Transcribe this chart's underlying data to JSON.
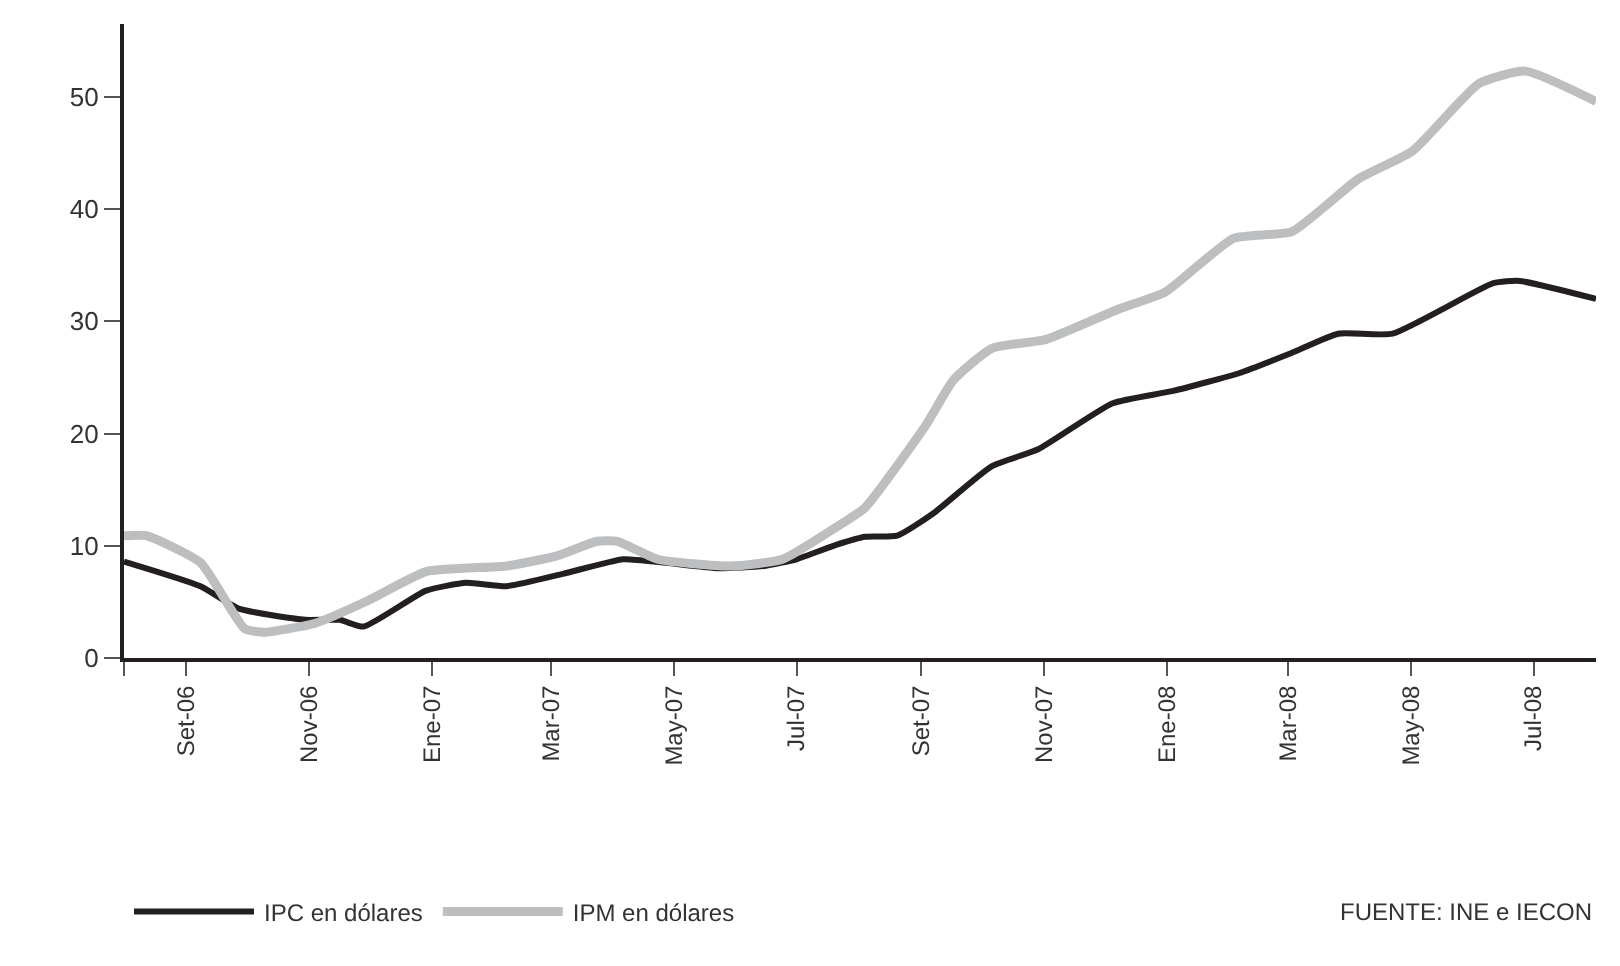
{
  "chart_data": {
    "type": "line",
    "annotations": [
      "FUENTE: INE e IECON"
    ],
    "xlim": [
      "2006-08-01",
      "2008-08-01"
    ],
    "xticks": [
      {
        "value": "2006-08-01",
        "label": null
      },
      {
        "value": "2006-09-01",
        "label": "Set-06"
      },
      {
        "value": "2006-11-01",
        "label": "Nov-06"
      },
      {
        "value": "2007-01-01",
        "label": "Ene-07"
      },
      {
        "value": "2007-03-01",
        "label": "Mar-07"
      },
      {
        "value": "2007-05-01",
        "label": "May-07"
      },
      {
        "value": "2007-07-01",
        "label": "Jul-07"
      },
      {
        "value": "2007-09-01",
        "label": "Set-07"
      },
      {
        "value": "2007-11-01",
        "label": "Nov-07"
      },
      {
        "value": "2008-01-01",
        "label": "Ene-08"
      },
      {
        "value": "2008-03-01",
        "label": "Mar-08"
      },
      {
        "value": "2008-05-01",
        "label": "May-08"
      },
      {
        "value": "2008-07-01",
        "label": "Jul-08"
      }
    ],
    "ylim": [
      0,
      56.5
    ],
    "yticks": [
      0,
      10,
      20,
      30,
      40,
      50
    ],
    "legend": "bottom",
    "marker": "none",
    "line_style": "solid",
    "series": [
      {
        "name": "IPC en dólares",
        "color": "#231f20",
        "x": [
          "2006-08-01",
          "2006-09-08",
          "2006-09-27",
          "2006-10-30",
          "2006-11-16",
          "2006-11-28",
          "2006-12-29",
          "2007-01-18",
          "2007-02-07",
          "2007-03-07",
          "2007-04-06",
          "2007-04-26",
          "2007-05-23",
          "2007-06-15",
          "2007-07-01",
          "2007-07-21",
          "2007-08-04",
          "2007-08-20",
          "2007-09-07",
          "2007-10-06",
          "2007-10-29",
          "2007-12-05",
          "2008-01-04",
          "2008-02-06",
          "2008-03-03",
          "2008-03-26",
          "2008-04-22",
          "2008-06-11",
          "2008-06-24",
          "2008-08-01"
        ],
        "values": [
          8.6,
          6.4,
          4.4,
          3.4,
          3.4,
          2.8,
          6.0,
          6.7,
          6.4,
          7.5,
          8.8,
          8.5,
          8.0,
          8.2,
          8.8,
          10.1,
          10.8,
          10.9,
          12.9,
          17.1,
          18.6,
          22.7,
          23.8,
          25.4,
          27.2,
          28.9,
          28.9,
          33.4,
          33.6,
          32.0
        ]
      },
      {
        "name": "IPM en dólares",
        "color": "#bcbec0",
        "x": [
          "2006-08-01",
          "2006-08-12",
          "2006-09-08",
          "2006-09-30",
          "2006-10-10",
          "2006-11-04",
          "2006-11-30",
          "2006-12-29",
          "2007-02-07",
          "2007-03-04",
          "2007-03-24",
          "2007-04-03",
          "2007-04-23",
          "2007-05-29",
          "2007-06-24",
          "2007-07-21",
          "2007-08-04",
          "2007-09-03",
          "2007-09-17",
          "2007-10-06",
          "2007-11-02",
          "2007-12-08",
          "2007-12-31",
          "2008-02-03",
          "2008-03-03",
          "2008-04-05",
          "2008-05-02",
          "2008-06-04",
          "2008-06-27",
          "2008-08-01"
        ],
        "values": [
          10.9,
          10.9,
          8.5,
          2.6,
          2.3,
          3.1,
          5.1,
          7.7,
          8.2,
          9.1,
          10.4,
          10.4,
          8.8,
          8.2,
          8.8,
          11.7,
          13.4,
          20.7,
          24.8,
          27.6,
          28.4,
          31.1,
          32.6,
          37.4,
          38.0,
          42.7,
          45.2,
          51.2,
          52.3,
          49.6
        ]
      }
    ]
  }
}
